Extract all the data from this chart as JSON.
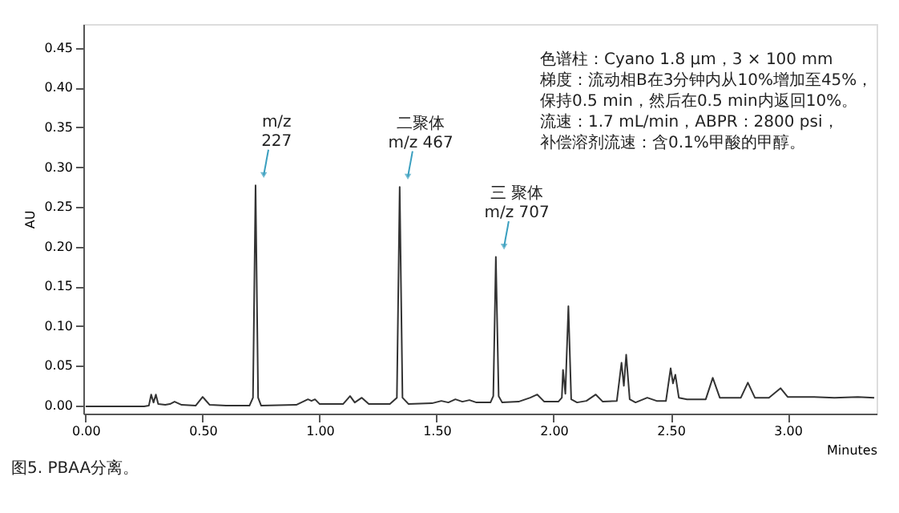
{
  "chart_data": {
    "type": "line",
    "xlabel": "Minutes",
    "ylabel": "AU",
    "xlim": [
      -0.01,
      3.38
    ],
    "xticks": [
      {
        "value": 0,
        "label": "0.00"
      },
      {
        "value": 0.5,
        "label": "0.50"
      },
      {
        "value": 1,
        "label": "1.00"
      },
      {
        "value": 1.5,
        "label": "1.50"
      },
      {
        "value": 2,
        "label": "2.00"
      },
      {
        "value": 2.5,
        "label": "2.50"
      },
      {
        "value": 3,
        "label": "3.00"
      }
    ],
    "ylim": [
      -0.01,
      0.48
    ],
    "yticks": [
      {
        "value": 0,
        "label": "0.00"
      },
      {
        "value": 0.05,
        "label": "0.05"
      },
      {
        "value": 0.1,
        "label": "0.10"
      },
      {
        "value": 0.15,
        "label": "0.15"
      },
      {
        "value": 0.2,
        "label": "0.20"
      },
      {
        "value": 0.25,
        "label": "0.25"
      },
      {
        "value": 0.3,
        "label": "0.30"
      },
      {
        "value": 0.35,
        "label": "0.35"
      },
      {
        "value": 0.4,
        "label": "0.40"
      },
      {
        "value": 0.45,
        "label": "0.45"
      }
    ],
    "grid": false,
    "marker": "none",
    "line_style": "solid",
    "series": [
      {
        "color": "#333333",
        "x": [
          0.0,
          0.25,
          0.27,
          0.28,
          0.29,
          0.3,
          0.31,
          0.34,
          0.36,
          0.38,
          0.41,
          0.47,
          0.5,
          0.53,
          0.6,
          0.7,
          0.715,
          0.726,
          0.737,
          0.75,
          0.9,
          0.95,
          0.965,
          0.98,
          1.0,
          1.1,
          1.13,
          1.15,
          1.18,
          1.21,
          1.3,
          1.33,
          1.342,
          1.354,
          1.38,
          1.48,
          1.52,
          1.55,
          1.58,
          1.61,
          1.64,
          1.67,
          1.73,
          1.742,
          1.753,
          1.765,
          1.78,
          1.85,
          1.9,
          1.93,
          1.96,
          2.02,
          2.035,
          2.04,
          2.05,
          2.063,
          2.075,
          2.1,
          2.14,
          2.18,
          2.21,
          2.27,
          2.29,
          2.3,
          2.31,
          2.325,
          2.35,
          2.4,
          2.44,
          2.48,
          2.5,
          2.51,
          2.52,
          2.535,
          2.57,
          2.6,
          2.65,
          2.68,
          2.71,
          2.76,
          2.8,
          2.83,
          2.86,
          2.92,
          2.97,
          3.0,
          3.1,
          3.2,
          3.3,
          3.37
        ],
        "values": [
          -0.001,
          -0.001,
          0.0,
          0.014,
          0.004,
          0.014,
          0.002,
          0.001,
          0.002,
          0.005,
          0.001,
          0.0,
          0.011,
          0.001,
          0.0,
          0.0,
          0.01,
          0.277,
          0.01,
          0.0,
          0.001,
          0.008,
          0.006,
          0.008,
          0.002,
          0.002,
          0.012,
          0.004,
          0.01,
          0.002,
          0.002,
          0.01,
          0.275,
          0.01,
          0.002,
          0.003,
          0.006,
          0.004,
          0.008,
          0.005,
          0.007,
          0.004,
          0.004,
          0.012,
          0.187,
          0.012,
          0.004,
          0.005,
          0.01,
          0.014,
          0.005,
          0.005,
          0.01,
          0.045,
          0.015,
          0.125,
          0.008,
          0.004,
          0.006,
          0.014,
          0.005,
          0.006,
          0.054,
          0.025,
          0.064,
          0.008,
          0.004,
          0.01,
          0.006,
          0.006,
          0.047,
          0.028,
          0.039,
          0.01,
          0.008,
          0.008,
          0.008,
          0.035,
          0.01,
          0.01,
          0.01,
          0.029,
          0.01,
          0.01,
          0.022,
          0.011,
          0.011,
          0.01,
          0.011,
          0.01
        ]
      }
    ],
    "annotations": [
      {
        "text": "m/z\n227",
        "x": 0.726,
        "y": 0.277
      },
      {
        "text": "二聚体\nm/z 467",
        "x": 1.342,
        "y": 0.275
      },
      {
        "text": "三 聚体\nm/z 707",
        "x": 1.753,
        "y": 0.187
      },
      "色谱柱：Cyano 1.8 μm，3 × 100 mm",
      "梯度：流动相B在3分钟内从10%增加至45%，",
      "保持0.5 min，然后在0.5 min内返回10%。",
      "流速：1.7 mL/min，ABPR：2800 psi，",
      "补偿溶剂流速：含0.1%甲酸的甲醇。",
      "图5. PBAA分离。"
    ]
  }
}
